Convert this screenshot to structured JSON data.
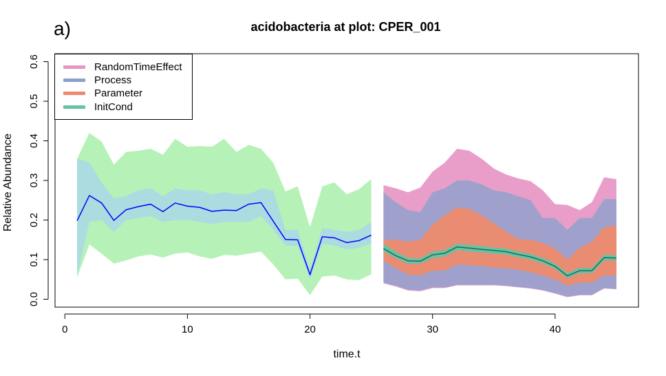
{
  "panel_tag": "a)",
  "chart_data": {
    "type": "area",
    "title": "acidobacteria at plot: CPER_001",
    "xlabel": "time.t",
    "ylabel": "Relative Abundance",
    "xlim": [
      -0.8,
      46.8
    ],
    "ylim": [
      -0.02,
      0.62
    ],
    "xticks": [
      0,
      10,
      20,
      30,
      40
    ],
    "yticks": [
      0.0,
      0.1,
      0.2,
      0.3,
      0.4,
      0.5,
      0.6
    ],
    "ytick_labels": [
      "0.0",
      "0.1",
      "0.2",
      "0.3",
      "0.4",
      "0.5",
      "0.6"
    ],
    "grid": false,
    "legend_position": "top-left",
    "legend": [
      {
        "name": "RandomTimeEffect",
        "color": "#e695c4"
      },
      {
        "name": "Process",
        "color": "#8da0cb"
      },
      {
        "name": "Parameter",
        "color": "#f0896b"
      },
      {
        "name": "InitCond",
        "color": "#66c2a5"
      }
    ],
    "calibration": {
      "x": [
        1,
        2,
        3,
        4,
        5,
        6,
        7,
        8,
        9,
        10,
        11,
        12,
        13,
        14,
        15,
        16,
        17,
        18,
        19,
        20,
        21,
        22,
        23,
        24,
        25
      ],
      "mean": [
        0.198,
        0.262,
        0.243,
        0.199,
        0.226,
        0.234,
        0.24,
        0.221,
        0.243,
        0.235,
        0.232,
        0.222,
        0.225,
        0.224,
        0.24,
        0.244,
        0.197,
        0.151,
        0.15,
        0.062,
        0.158,
        0.155,
        0.143,
        0.148,
        0.162
      ],
      "inner_upper": [
        0.355,
        0.345,
        0.295,
        0.255,
        0.26,
        0.275,
        0.28,
        0.26,
        0.28,
        0.275,
        0.275,
        0.265,
        0.27,
        0.265,
        0.265,
        0.28,
        0.275,
        0.175,
        0.175,
        0.075,
        0.18,
        0.175,
        0.17,
        0.175,
        0.195
      ],
      "inner_lower": [
        0.06,
        0.195,
        0.2,
        0.17,
        0.2,
        0.205,
        0.21,
        0.195,
        0.2,
        0.2,
        0.195,
        0.19,
        0.195,
        0.195,
        0.195,
        0.21,
        0.175,
        0.135,
        0.135,
        0.05,
        0.14,
        0.135,
        0.125,
        0.13,
        0.14
      ],
      "outer_upper": [
        0.355,
        0.42,
        0.398,
        0.34,
        0.372,
        0.375,
        0.38,
        0.365,
        0.405,
        0.385,
        0.387,
        0.385,
        0.405,
        0.372,
        0.39,
        0.38,
        0.345,
        0.272,
        0.285,
        0.182,
        0.285,
        0.295,
        0.265,
        0.278,
        0.303
      ],
      "outer_lower": [
        0.055,
        0.138,
        0.115,
        0.09,
        0.098,
        0.108,
        0.113,
        0.105,
        0.115,
        0.118,
        0.108,
        0.102,
        0.112,
        0.11,
        0.115,
        0.12,
        0.088,
        0.05,
        0.052,
        0.01,
        0.057,
        0.06,
        0.05,
        0.048,
        0.063
      ],
      "colors": {
        "outer": "#b6f2b8",
        "inner": "#acdbe0",
        "line": "#0000ff"
      }
    },
    "forecast": {
      "x": [
        26,
        27,
        28,
        29,
        30,
        31,
        32,
        33,
        34,
        35,
        36,
        37,
        38,
        39,
        40,
        41,
        42,
        43,
        44,
        45
      ],
      "median": [
        0.128,
        0.11,
        0.097,
        0.096,
        0.112,
        0.116,
        0.132,
        0.129,
        0.126,
        0.123,
        0.12,
        0.113,
        0.107,
        0.097,
        0.083,
        0.059,
        0.072,
        0.072,
        0.105,
        0.104
      ],
      "random_time_effect": {
        "upper": [
          0.288,
          0.28,
          0.27,
          0.282,
          0.322,
          0.345,
          0.38,
          0.375,
          0.355,
          0.33,
          0.315,
          0.305,
          0.298,
          0.275,
          0.24,
          0.238,
          0.225,
          0.245,
          0.308,
          0.303
        ],
        "lower": [
          0.04,
          0.032,
          0.022,
          0.02,
          0.028,
          0.028,
          0.035,
          0.035,
          0.035,
          0.035,
          0.033,
          0.03,
          0.027,
          0.022,
          0.014,
          0.005,
          0.01,
          0.01,
          0.027,
          0.025
        ]
      },
      "process": {
        "upper": [
          0.27,
          0.245,
          0.225,
          0.22,
          0.27,
          0.28,
          0.3,
          0.3,
          0.29,
          0.275,
          0.27,
          0.26,
          0.25,
          0.205,
          0.205,
          0.175,
          0.205,
          0.205,
          0.253,
          0.253
        ],
        "lower": [
          0.042,
          0.034,
          0.024,
          0.022,
          0.03,
          0.03,
          0.036,
          0.036,
          0.036,
          0.036,
          0.034,
          0.031,
          0.028,
          0.023,
          0.015,
          0.007,
          0.011,
          0.011,
          0.028,
          0.026
        ]
      },
      "parameter": {
        "upper": [
          0.15,
          0.15,
          0.145,
          0.15,
          0.188,
          0.212,
          0.232,
          0.228,
          0.212,
          0.192,
          0.17,
          0.152,
          0.15,
          0.142,
          0.128,
          0.1,
          0.13,
          0.145,
          0.182,
          0.186
        ],
        "lower": [
          0.098,
          0.078,
          0.062,
          0.06,
          0.072,
          0.072,
          0.088,
          0.086,
          0.084,
          0.08,
          0.078,
          0.074,
          0.068,
          0.06,
          0.05,
          0.034,
          0.042,
          0.042,
          0.06,
          0.06
        ]
      },
      "init_cond": {
        "upper": [
          0.14,
          0.12,
          0.104,
          0.103,
          0.12,
          0.124,
          0.14,
          0.137,
          0.134,
          0.131,
          0.128,
          0.12,
          0.114,
          0.104,
          0.09,
          0.066,
          0.079,
          0.079,
          0.112,
          0.111
        ],
        "lower": [
          0.12,
          0.104,
          0.09,
          0.09,
          0.104,
          0.108,
          0.124,
          0.121,
          0.118,
          0.115,
          0.113,
          0.106,
          0.1,
          0.09,
          0.077,
          0.053,
          0.066,
          0.066,
          0.098,
          0.098
        ]
      },
      "colors": {
        "line": "#1e6b52",
        "init_cond": "#66c2a5",
        "parameter": "#ea8c72",
        "process": "#9fa1cc",
        "random_time_effect": "#e89ec8"
      }
    }
  }
}
